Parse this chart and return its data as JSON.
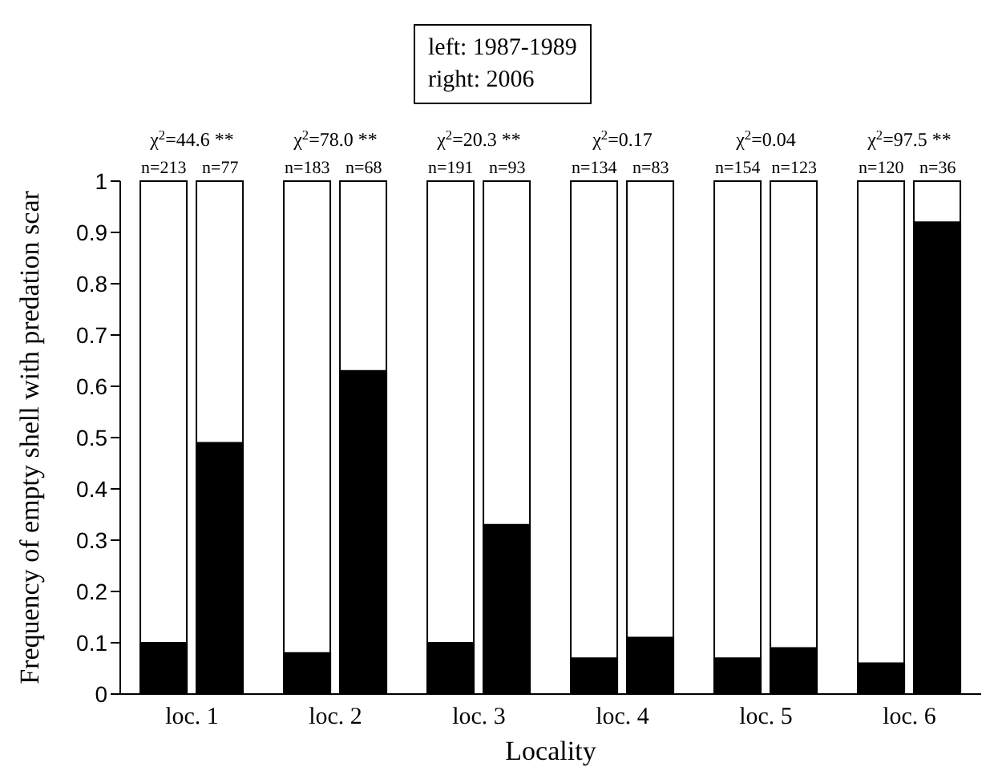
{
  "chart_data": {
    "type": "bar",
    "xlabel": "Locality",
    "ylabel": "Frequency of empty shell with predation scar",
    "categories": [
      "loc. 1",
      "loc. 2",
      "loc. 3",
      "loc. 4",
      "loc. 5",
      "loc. 6"
    ],
    "series": [
      {
        "color": "#000000",
        "values": [
          0.1,
          0.08,
          0.1,
          0.07,
          0.07,
          0.06
        ]
      },
      {
        "color": "#000000",
        "values": [
          0.49,
          0.63,
          0.33,
          0.11,
          0.09,
          0.92
        ]
      }
    ],
    "ylim": [
      0,
      1
    ],
    "yticks": [
      0,
      0.1,
      0.2,
      0.3,
      0.4,
      0.5,
      0.6,
      0.7,
      0.8,
      0.9,
      1
    ],
    "legend": false,
    "grid": false,
    "annotations": [
      "left: 1987-1989",
      "right: 2006",
      "χ$^{2}$=44.6 **",
      "n=213",
      "n=77",
      "χ$^{2}$=78.0 **",
      "n=183",
      "n=68",
      "χ$^{2}$=20.3 **",
      "n=191",
      "n=93",
      "χ$^{2}$=0.17",
      "n=134",
      "n=83",
      "χ$^{2}$=0.04",
      "n=154",
      "n=123",
      "χ$^{2}$=97.5 **",
      "n=120",
      "n=36"
    ]
  }
}
